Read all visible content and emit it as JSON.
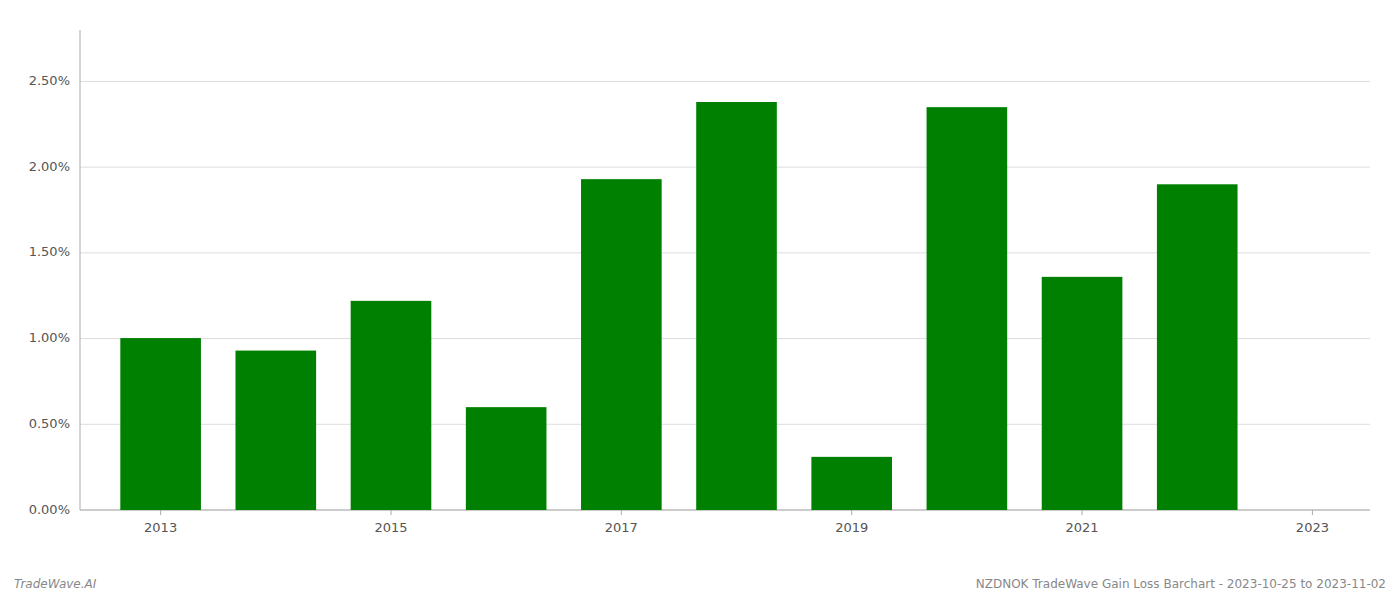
{
  "chart_data": {
    "type": "bar",
    "title": "NZDNOK TradeWave Gain Loss Barchart - 2023-10-25 to 2023-11-02",
    "annotations": [
      "TradeWave.AI"
    ],
    "x": [
      2013,
      2014,
      2015,
      2016,
      2017,
      2018,
      2019,
      2020,
      2021,
      2022
    ],
    "values": [
      0.01003,
      0.0093,
      0.0122,
      0.006,
      0.0193,
      0.0238,
      0.0031,
      0.0235,
      0.0136,
      0.019
    ],
    "color": "#008000",
    "xlim": [
      2012.3,
      2023.5
    ],
    "xticks": [
      2013,
      2015,
      2017,
      2019,
      2021,
      2023
    ],
    "ylim": [
      0.0,
      0.028
    ],
    "yticks": [
      {
        "value": 0.0,
        "label": "0.00%"
      },
      {
        "value": 0.005,
        "label": "0.50%"
      },
      {
        "value": 0.01,
        "label": "1.00%"
      },
      {
        "value": 0.015,
        "label": "1.50%"
      },
      {
        "value": 0.02,
        "label": "2.00%"
      },
      {
        "value": 0.025,
        "label": "2.50%"
      }
    ],
    "grid": true
  }
}
